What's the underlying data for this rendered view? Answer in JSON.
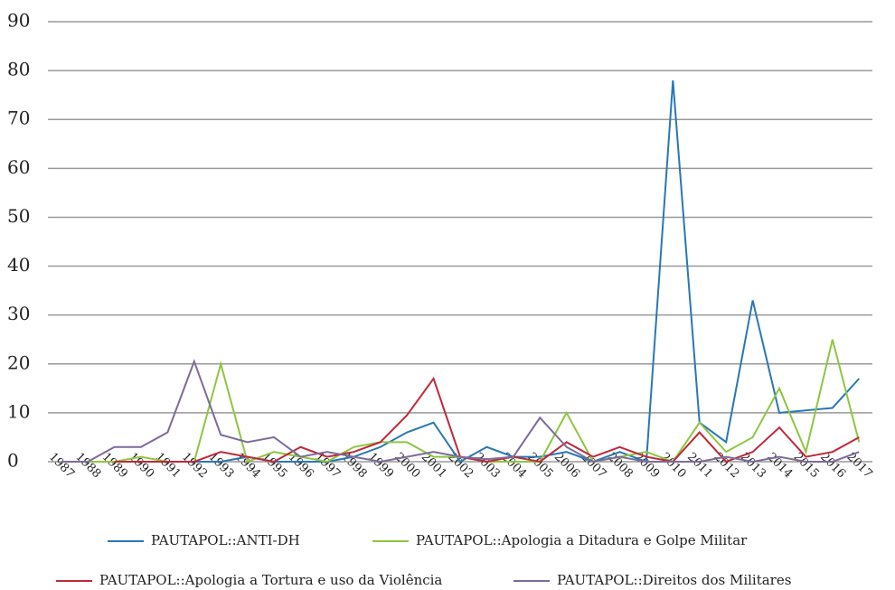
{
  "chart_data": {
    "type": "line",
    "categories": [
      "1987",
      "1988",
      "1989",
      "1990",
      "1991",
      "1992",
      "1993",
      "1994",
      "1995",
      "1996",
      "1997",
      "1998",
      "1999",
      "2000",
      "2001",
      "2002",
      "2003",
      "2004",
      "2005",
      "2006",
      "2007",
      "2008",
      "2009",
      "2010",
      "2011",
      "2012",
      "2013",
      "2014",
      "2015",
      "2016",
      "2017"
    ],
    "series": [
      {
        "name": "PAUTAPOL::ANTI-DH",
        "color": "#2878b5",
        "values": [
          0,
          0,
          0,
          0,
          0,
          0,
          0,
          1,
          0,
          0,
          0,
          1,
          3,
          6,
          8,
          0,
          3,
          1,
          1,
          2,
          0,
          2,
          0,
          78,
          8,
          4,
          33,
          10,
          10.5,
          11,
          17
        ]
      },
      {
        "name": "PAUTAPOL::Apologia a Ditadura e Golpe Militar",
        "color": "#8dc63f",
        "values": [
          0,
          0,
          0,
          1,
          0,
          0,
          20,
          0,
          2,
          1,
          0,
          3,
          4,
          4,
          1,
          1,
          0,
          0,
          0,
          10,
          0,
          1,
          2,
          0,
          8,
          2,
          5,
          15,
          2,
          25,
          4
        ]
      },
      {
        "name": "PAUTAPOL::Apologia a Tortura e uso da Violência",
        "color": "#c0283a",
        "values": [
          null,
          null,
          0,
          0,
          0,
          0,
          2,
          1,
          0,
          3,
          1,
          2,
          4,
          9.5,
          17,
          1,
          0,
          1,
          0,
          4,
          1,
          3,
          1,
          0,
          6,
          0,
          2,
          7,
          1,
          2,
          5
        ]
      },
      {
        "name": "PAUTAPOL::Direitos dos Militares",
        "color": "#7d6b9b",
        "values": [
          0,
          0,
          3,
          3,
          6,
          20.5,
          5.5,
          4,
          5,
          1,
          2,
          1,
          0,
          1,
          2,
          1,
          0.5,
          1,
          9,
          3,
          0,
          1,
          0,
          0,
          0,
          1,
          0,
          1,
          0,
          0,
          2
        ]
      }
    ],
    "ylim": [
      0,
      90
    ],
    "yticks": [
      0,
      10,
      20,
      30,
      40,
      50,
      60,
      70,
      80,
      90
    ],
    "grid": true
  }
}
